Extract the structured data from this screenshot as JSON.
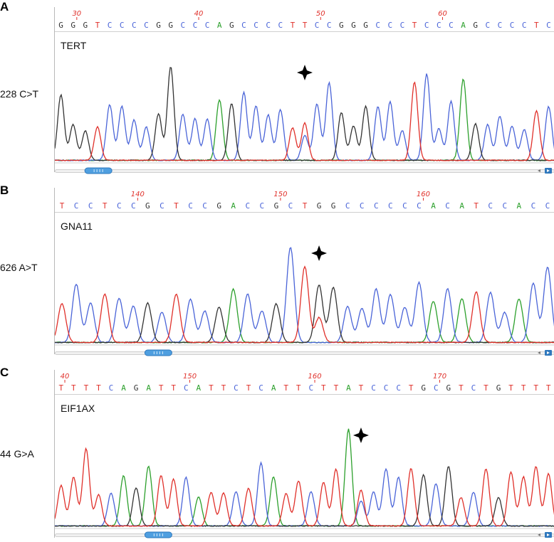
{
  "colors": {
    "A": "#2ca02c",
    "C": "#4a64d8",
    "G": "#333333",
    "T": "#e0302a",
    "pos": "#e0302a"
  },
  "panels": [
    {
      "letter": "A",
      "gene": "TERT",
      "mutation": "228 C>T",
      "sequence": "GGGTCCCCGGCCCAGCCCCTTCCGGGCCCTCCCAGCCCCTC",
      "positions": [
        {
          "label": "30",
          "index": 1
        },
        {
          "label": "40",
          "index": 11
        },
        {
          "label": "50",
          "index": 21
        },
        {
          "label": "60",
          "index": 31
        }
      ],
      "star_index": 20,
      "thumb_fraction": 0.06,
      "marker_icon": "star-icon"
    },
    {
      "letter": "B",
      "gene": "GNA11",
      "mutation": "626 A>T",
      "sequence": "TCCTCCGCTCCGACCGCTGGCCCCCCACATCCACC",
      "positions": [
        {
          "label": "140",
          "index": 5
        },
        {
          "label": "150",
          "index": 15
        },
        {
          "label": "160",
          "index": 25
        }
      ],
      "star_index": 18,
      "thumb_fraction": 0.18,
      "marker_icon": "star-icon"
    },
    {
      "letter": "C",
      "gene": "EIF1AX",
      "mutation": "44 G>A",
      "sequence": "TTTTCAGATTCATTCTCATTCTTATCCCTGCGTCTGTTTT",
      "positions": [
        {
          "label": "40",
          "index": 0
        },
        {
          "label": "150",
          "index": 10
        },
        {
          "label": "160",
          "index": 20
        },
        {
          "label": "170",
          "index": 30
        }
      ],
      "star_index": 24,
      "thumb_fraction": 0.18,
      "marker_icon": "star-icon"
    }
  ]
}
